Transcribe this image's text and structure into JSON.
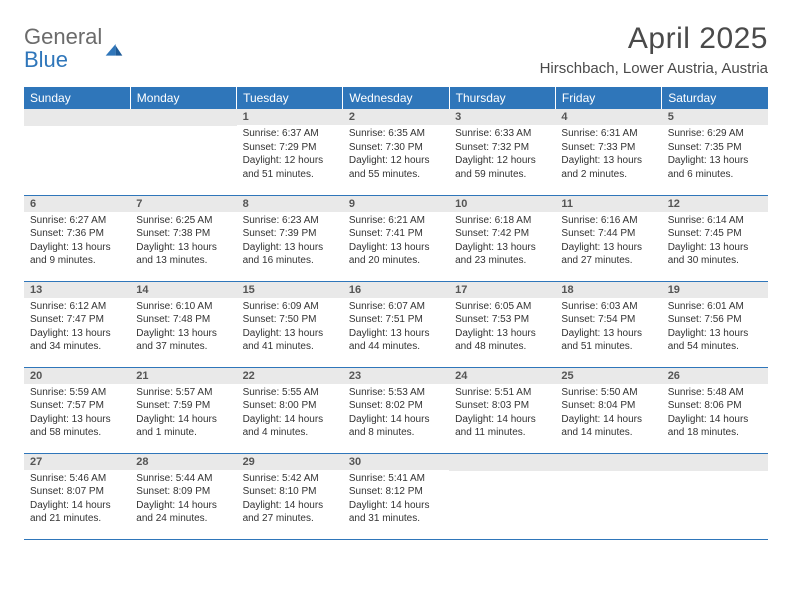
{
  "brand": {
    "general": "General",
    "blue": "Blue"
  },
  "header": {
    "month_title": "April 2025",
    "location": "Hirschbach, Lower Austria, Austria"
  },
  "colors": {
    "accent": "#2f76ba",
    "head_text": "#ffffff",
    "daynum_bg": "#e9e9e9",
    "body_text": "#333333"
  },
  "calendar": {
    "day_headers": [
      "Sunday",
      "Monday",
      "Tuesday",
      "Wednesday",
      "Thursday",
      "Friday",
      "Saturday"
    ],
    "grid": [
      [
        {
          "day": null
        },
        {
          "day": null
        },
        {
          "day": "1",
          "sunrise": "Sunrise: 6:37 AM",
          "sunset": "Sunset: 7:29 PM",
          "daylight": "Daylight: 12 hours and 51 minutes."
        },
        {
          "day": "2",
          "sunrise": "Sunrise: 6:35 AM",
          "sunset": "Sunset: 7:30 PM",
          "daylight": "Daylight: 12 hours and 55 minutes."
        },
        {
          "day": "3",
          "sunrise": "Sunrise: 6:33 AM",
          "sunset": "Sunset: 7:32 PM",
          "daylight": "Daylight: 12 hours and 59 minutes."
        },
        {
          "day": "4",
          "sunrise": "Sunrise: 6:31 AM",
          "sunset": "Sunset: 7:33 PM",
          "daylight": "Daylight: 13 hours and 2 minutes."
        },
        {
          "day": "5",
          "sunrise": "Sunrise: 6:29 AM",
          "sunset": "Sunset: 7:35 PM",
          "daylight": "Daylight: 13 hours and 6 minutes."
        }
      ],
      [
        {
          "day": "6",
          "sunrise": "Sunrise: 6:27 AM",
          "sunset": "Sunset: 7:36 PM",
          "daylight": "Daylight: 13 hours and 9 minutes."
        },
        {
          "day": "7",
          "sunrise": "Sunrise: 6:25 AM",
          "sunset": "Sunset: 7:38 PM",
          "daylight": "Daylight: 13 hours and 13 minutes."
        },
        {
          "day": "8",
          "sunrise": "Sunrise: 6:23 AM",
          "sunset": "Sunset: 7:39 PM",
          "daylight": "Daylight: 13 hours and 16 minutes."
        },
        {
          "day": "9",
          "sunrise": "Sunrise: 6:21 AM",
          "sunset": "Sunset: 7:41 PM",
          "daylight": "Daylight: 13 hours and 20 minutes."
        },
        {
          "day": "10",
          "sunrise": "Sunrise: 6:18 AM",
          "sunset": "Sunset: 7:42 PM",
          "daylight": "Daylight: 13 hours and 23 minutes."
        },
        {
          "day": "11",
          "sunrise": "Sunrise: 6:16 AM",
          "sunset": "Sunset: 7:44 PM",
          "daylight": "Daylight: 13 hours and 27 minutes."
        },
        {
          "day": "12",
          "sunrise": "Sunrise: 6:14 AM",
          "sunset": "Sunset: 7:45 PM",
          "daylight": "Daylight: 13 hours and 30 minutes."
        }
      ],
      [
        {
          "day": "13",
          "sunrise": "Sunrise: 6:12 AM",
          "sunset": "Sunset: 7:47 PM",
          "daylight": "Daylight: 13 hours and 34 minutes."
        },
        {
          "day": "14",
          "sunrise": "Sunrise: 6:10 AM",
          "sunset": "Sunset: 7:48 PM",
          "daylight": "Daylight: 13 hours and 37 minutes."
        },
        {
          "day": "15",
          "sunrise": "Sunrise: 6:09 AM",
          "sunset": "Sunset: 7:50 PM",
          "daylight": "Daylight: 13 hours and 41 minutes."
        },
        {
          "day": "16",
          "sunrise": "Sunrise: 6:07 AM",
          "sunset": "Sunset: 7:51 PM",
          "daylight": "Daylight: 13 hours and 44 minutes."
        },
        {
          "day": "17",
          "sunrise": "Sunrise: 6:05 AM",
          "sunset": "Sunset: 7:53 PM",
          "daylight": "Daylight: 13 hours and 48 minutes."
        },
        {
          "day": "18",
          "sunrise": "Sunrise: 6:03 AM",
          "sunset": "Sunset: 7:54 PM",
          "daylight": "Daylight: 13 hours and 51 minutes."
        },
        {
          "day": "19",
          "sunrise": "Sunrise: 6:01 AM",
          "sunset": "Sunset: 7:56 PM",
          "daylight": "Daylight: 13 hours and 54 minutes."
        }
      ],
      [
        {
          "day": "20",
          "sunrise": "Sunrise: 5:59 AM",
          "sunset": "Sunset: 7:57 PM",
          "daylight": "Daylight: 13 hours and 58 minutes."
        },
        {
          "day": "21",
          "sunrise": "Sunrise: 5:57 AM",
          "sunset": "Sunset: 7:59 PM",
          "daylight": "Daylight: 14 hours and 1 minute."
        },
        {
          "day": "22",
          "sunrise": "Sunrise: 5:55 AM",
          "sunset": "Sunset: 8:00 PM",
          "daylight": "Daylight: 14 hours and 4 minutes."
        },
        {
          "day": "23",
          "sunrise": "Sunrise: 5:53 AM",
          "sunset": "Sunset: 8:02 PM",
          "daylight": "Daylight: 14 hours and 8 minutes."
        },
        {
          "day": "24",
          "sunrise": "Sunrise: 5:51 AM",
          "sunset": "Sunset: 8:03 PM",
          "daylight": "Daylight: 14 hours and 11 minutes."
        },
        {
          "day": "25",
          "sunrise": "Sunrise: 5:50 AM",
          "sunset": "Sunset: 8:04 PM",
          "daylight": "Daylight: 14 hours and 14 minutes."
        },
        {
          "day": "26",
          "sunrise": "Sunrise: 5:48 AM",
          "sunset": "Sunset: 8:06 PM",
          "daylight": "Daylight: 14 hours and 18 minutes."
        }
      ],
      [
        {
          "day": "27",
          "sunrise": "Sunrise: 5:46 AM",
          "sunset": "Sunset: 8:07 PM",
          "daylight": "Daylight: 14 hours and 21 minutes."
        },
        {
          "day": "28",
          "sunrise": "Sunrise: 5:44 AM",
          "sunset": "Sunset: 8:09 PM",
          "daylight": "Daylight: 14 hours and 24 minutes."
        },
        {
          "day": "29",
          "sunrise": "Sunrise: 5:42 AM",
          "sunset": "Sunset: 8:10 PM",
          "daylight": "Daylight: 14 hours and 27 minutes."
        },
        {
          "day": "30",
          "sunrise": "Sunrise: 5:41 AM",
          "sunset": "Sunset: 8:12 PM",
          "daylight": "Daylight: 14 hours and 31 minutes."
        },
        {
          "day": null
        },
        {
          "day": null
        },
        {
          "day": null
        }
      ]
    ]
  }
}
